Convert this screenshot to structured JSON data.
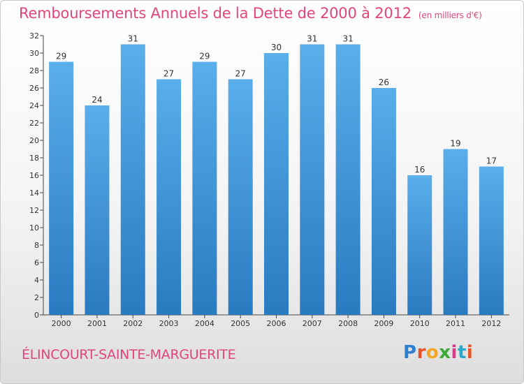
{
  "header": {
    "title": "Remboursements Annuels de la Dette de 2000 à 2012",
    "unit": "(en milliers d'€)"
  },
  "footer": {
    "city": "ÉLINCOURT-SAINTE-MARGUERITE",
    "logo": "Proxiti"
  },
  "colors": {
    "title": "#e0457b",
    "bar_top": "#5aaeea",
    "bar_bottom": "#2a7ac0",
    "axis": "#444444"
  },
  "chart_data": {
    "type": "bar",
    "title": "Remboursements Annuels de la Dette de 2000 à 2012",
    "xlabel": "",
    "ylabel": "",
    "categories": [
      "2000",
      "2001",
      "2002",
      "2003",
      "2004",
      "2005",
      "2006",
      "2007",
      "2008",
      "2009",
      "2010",
      "2011",
      "2012"
    ],
    "values": [
      29,
      24,
      31,
      27,
      29,
      27,
      30,
      31,
      31,
      26,
      16,
      19,
      17
    ],
    "ylim": [
      0,
      32
    ],
    "yticks": [
      0,
      2,
      4,
      6,
      8,
      10,
      12,
      14,
      16,
      18,
      20,
      22,
      24,
      26,
      28,
      30,
      32
    ],
    "grid": false,
    "legend": "none"
  }
}
